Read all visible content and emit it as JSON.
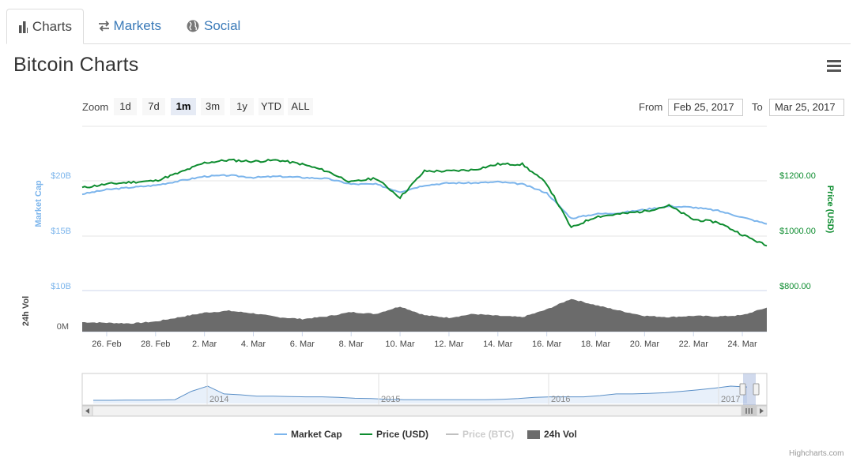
{
  "tabs": [
    {
      "label": "Charts",
      "icon": "bar-chart-icon",
      "active": true
    },
    {
      "label": "Markets",
      "icon": "exchange-arrows-icon",
      "active": false
    },
    {
      "label": "Social",
      "icon": "globe-icon",
      "active": false
    }
  ],
  "page_title": "Bitcoin Charts",
  "menu_icon": "hamburger-menu-icon",
  "range_selector": {
    "zoom_label": "Zoom",
    "buttons": [
      "1d",
      "7d",
      "1m",
      "3m",
      "1y",
      "YTD",
      "ALL"
    ],
    "selected": "1m",
    "from_label": "From",
    "from_value": "Feb 25, 2017",
    "to_label": "To",
    "to_value": "Mar 25, 2017"
  },
  "chart_data": {
    "type": "line",
    "x_range": [
      "2017-02-25",
      "2017-03-25"
    ],
    "x_ticks": [
      "26. Feb",
      "28. Feb",
      "2. Mar",
      "4. Mar",
      "6. Mar",
      "8. Mar",
      "10. Mar",
      "12. Mar",
      "14. Mar",
      "16. Mar",
      "18. Mar",
      "20. Mar",
      "22. Mar",
      "24. Mar"
    ],
    "y_left": {
      "label": "Market Cap",
      "ticks": [
        "$10B",
        "$15B",
        "$20B"
      ],
      "range_billions": [
        10,
        20
      ],
      "color": "#7cb5ec"
    },
    "y_right": {
      "label": "Price (USD)",
      "ticks": [
        "$800.00",
        "$1000.00",
        "$1200.00"
      ],
      "range": [
        800,
        1200
      ],
      "color": "#0d8c2f"
    },
    "volume_axis": {
      "label": "24h Vol",
      "ticks": [
        "0M"
      ]
    },
    "series": [
      {
        "name": "Market Cap",
        "color": "#7cb5ec",
        "unit": "billion USD",
        "visible": true,
        "x_days": [
          0,
          1,
          2,
          3,
          4,
          5,
          6,
          7,
          8,
          9,
          10,
          11,
          12,
          13,
          14,
          15,
          16,
          17,
          18,
          19,
          20,
          21,
          22,
          23,
          24,
          25,
          26,
          27,
          28
        ],
        "values": [
          18.3,
          18.7,
          18.9,
          19.1,
          19.5,
          19.9,
          20.0,
          19.8,
          19.9,
          19.8,
          19.7,
          19.2,
          19.2,
          18.5,
          19.1,
          19.3,
          19.3,
          19.4,
          19.2,
          18.4,
          16.1,
          16.5,
          16.6,
          16.9,
          17.2,
          17.1,
          16.8,
          16.2,
          15.6
        ]
      },
      {
        "name": "Price (USD)",
        "color": "#0d8c2f",
        "unit": "USD",
        "visible": true,
        "x_days": [
          0,
          1,
          2,
          3,
          4,
          5,
          6,
          7,
          8,
          9,
          10,
          11,
          12,
          13,
          14,
          15,
          16,
          17,
          18,
          19,
          20,
          21,
          22,
          23,
          24,
          25,
          26,
          27,
          28
        ],
        "values": [
          1155,
          1168,
          1175,
          1180,
          1210,
          1245,
          1255,
          1250,
          1255,
          1240,
          1215,
          1175,
          1190,
          1120,
          1215,
          1215,
          1220,
          1240,
          1240,
          1170,
          1010,
          1050,
          1060,
          1070,
          1090,
          1040,
          1030,
          985,
          945
        ]
      },
      {
        "name": "Price (BTC)",
        "color": "#c0c0c0",
        "visible": false,
        "values": []
      },
      {
        "name": "24h Vol",
        "color": "#6b6b6b",
        "type": "area",
        "unit": "million USD",
        "visible": true,
        "x_days": [
          0,
          1,
          2,
          3,
          4,
          5,
          6,
          7,
          8,
          9,
          10,
          11,
          12,
          13,
          14,
          15,
          16,
          17,
          18,
          19,
          20,
          21,
          22,
          23,
          24,
          25,
          26,
          27,
          28
        ],
        "values": [
          150,
          140,
          130,
          160,
          230,
          300,
          330,
          290,
          230,
          200,
          240,
          310,
          280,
          400,
          260,
          220,
          280,
          250,
          230,
          350,
          520,
          420,
          330,
          250,
          230,
          250,
          240,
          260,
          380
        ]
      }
    ],
    "navigator": {
      "x_ticks": [
        "2014",
        "2015",
        "2016",
        "2017"
      ],
      "values": [
        0.18,
        0.18,
        0.19,
        0.19,
        0.2,
        0.22,
        0.7,
        1.0,
        0.55,
        0.5,
        0.42,
        0.42,
        0.4,
        0.38,
        0.38,
        0.35,
        0.3,
        0.28,
        0.24,
        0.22,
        0.22,
        0.22,
        0.22,
        0.22,
        0.22,
        0.24,
        0.28,
        0.35,
        0.38,
        0.38,
        0.38,
        0.45,
        0.55,
        0.55,
        0.58,
        0.62,
        0.7,
        0.78,
        0.88,
        1.0,
        0.95
      ]
    },
    "legend": {
      "placement": "bottom-center"
    }
  },
  "credits": "Highcharts.com"
}
